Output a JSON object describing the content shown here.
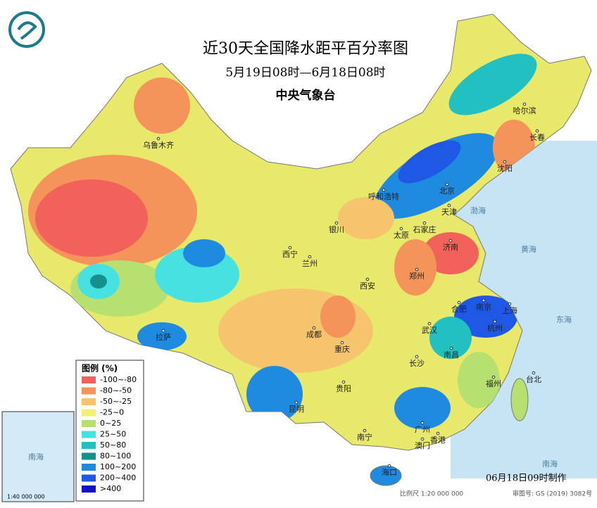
{
  "header": {
    "title": "近30天全国降水距平百分率图",
    "subtitle": "5月19日08时—6月18日08时",
    "agency": "中央气象台"
  },
  "legend": {
    "title": "图例 (%)",
    "items": [
      {
        "label": "-100~-80",
        "color": "#f0625a"
      },
      {
        "label": "-80~-50",
        "color": "#f4935a"
      },
      {
        "label": "-50~-25",
        "color": "#f6c46c"
      },
      {
        "label": "-25~0",
        "color": "#f2f070"
      },
      {
        "label": "0~25",
        "color": "#b6e070"
      },
      {
        "label": "25~50",
        "color": "#46e2e2"
      },
      {
        "label": "50~80",
        "color": "#22c0c0"
      },
      {
        "label": "80~100",
        "color": "#14908e"
      },
      {
        "label": "100~200",
        "color": "#1e8ae0"
      },
      {
        "label": "200~400",
        "color": "#1e58e4"
      },
      {
        "label": ">400",
        "color": "#1212c4"
      }
    ]
  },
  "cities": [
    "乌鲁木齐",
    "拉萨",
    "西宁",
    "兰州",
    "银川",
    "呼和浩特",
    "北京",
    "天津",
    "石家庄",
    "太原",
    "济南",
    "郑州",
    "西安",
    "成都",
    "重庆",
    "贵阳",
    "昆明",
    "南宁",
    "广州",
    "澳门",
    "香港",
    "海口",
    "长沙",
    "武汉",
    "南昌",
    "合肥",
    "南京",
    "上海",
    "杭州",
    "福州",
    "台北",
    "哈尔滨",
    "长春",
    "沈阳"
  ],
  "seas": [
    "渤海",
    "黄海",
    "东海",
    "南海"
  ],
  "inset": {
    "sea": "南海",
    "scale": "1:40 000 000"
  },
  "footer": {
    "made": "06月18日09时制作",
    "scale": "比例尺 1:20 000 000",
    "review": "审图号: GS (2019) 3082号"
  }
}
